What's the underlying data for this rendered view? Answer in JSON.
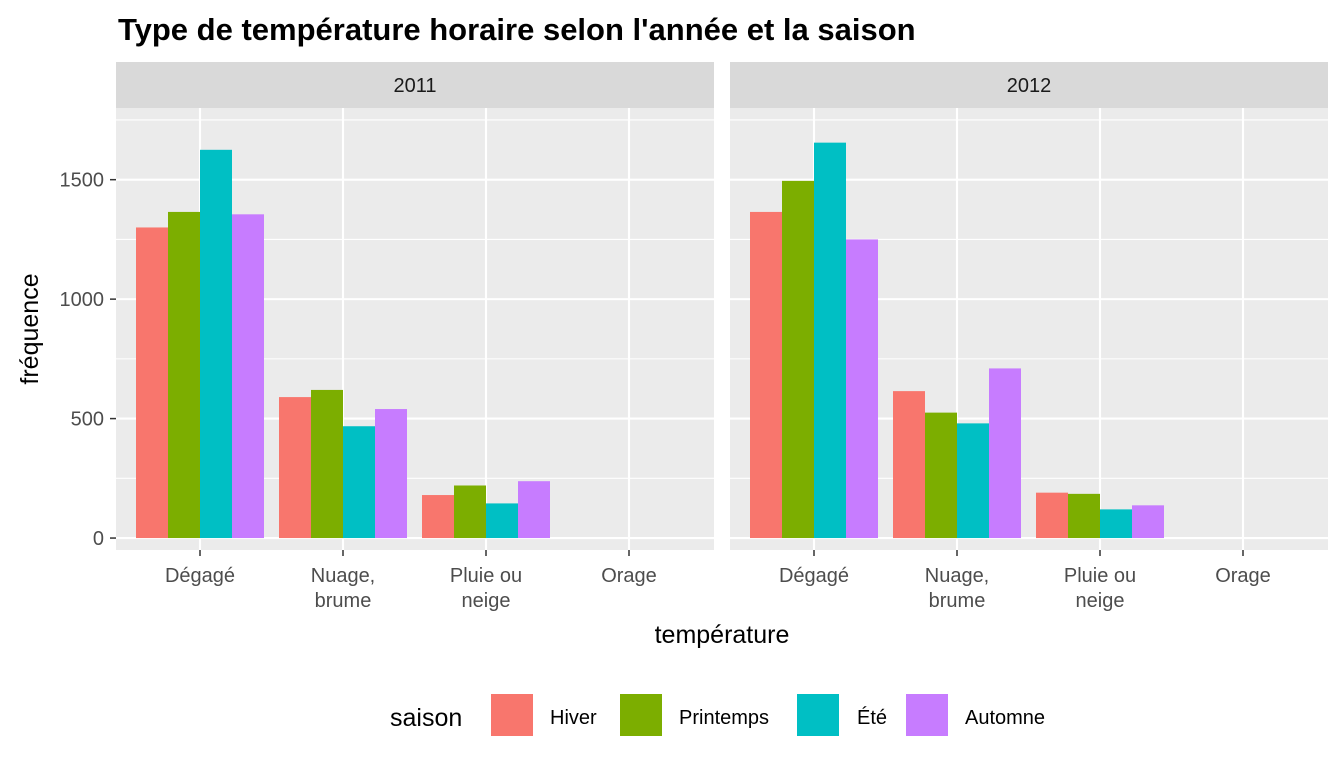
{
  "chart_data": {
    "type": "bar",
    "title": "Type de température horaire selon l'année et la saison",
    "xlabel": "température",
    "ylabel": "fréquence",
    "ylim": [
      0,
      1800
    ],
    "yticks": [
      0,
      500,
      1000,
      1500
    ],
    "categories": [
      "Dégagé",
      "Nuage,\nbrume",
      "Pluie ou\nneige",
      "Orage"
    ],
    "legend": {
      "title": "saison",
      "position": "bottom",
      "entries": [
        "Hiver",
        "Printemps",
        "Été",
        "Automne"
      ]
    },
    "colors": [
      "#F8766D",
      "#7CAE00",
      "#00BFC4",
      "#C77CFF"
    ],
    "grid": true,
    "facets": [
      {
        "label": "2011",
        "series": [
          {
            "name": "Hiver",
            "values": [
              1300,
              590,
              180,
              0
            ]
          },
          {
            "name": "Printemps",
            "values": [
              1365,
              620,
              220,
              0
            ]
          },
          {
            "name": "Été",
            "values": [
              1625,
              468,
              145,
              0
            ]
          },
          {
            "name": "Automne",
            "values": [
              1355,
              540,
              238,
              0
            ]
          }
        ]
      },
      {
        "label": "2012",
        "series": [
          {
            "name": "Hiver",
            "values": [
              1365,
              615,
              190,
              0
            ]
          },
          {
            "name": "Printemps",
            "values": [
              1495,
              525,
              185,
              0
            ]
          },
          {
            "name": "Été",
            "values": [
              1655,
              480,
              120,
              0
            ]
          },
          {
            "name": "Automne",
            "values": [
              1250,
              710,
              137,
              0
            ]
          }
        ]
      }
    ]
  }
}
